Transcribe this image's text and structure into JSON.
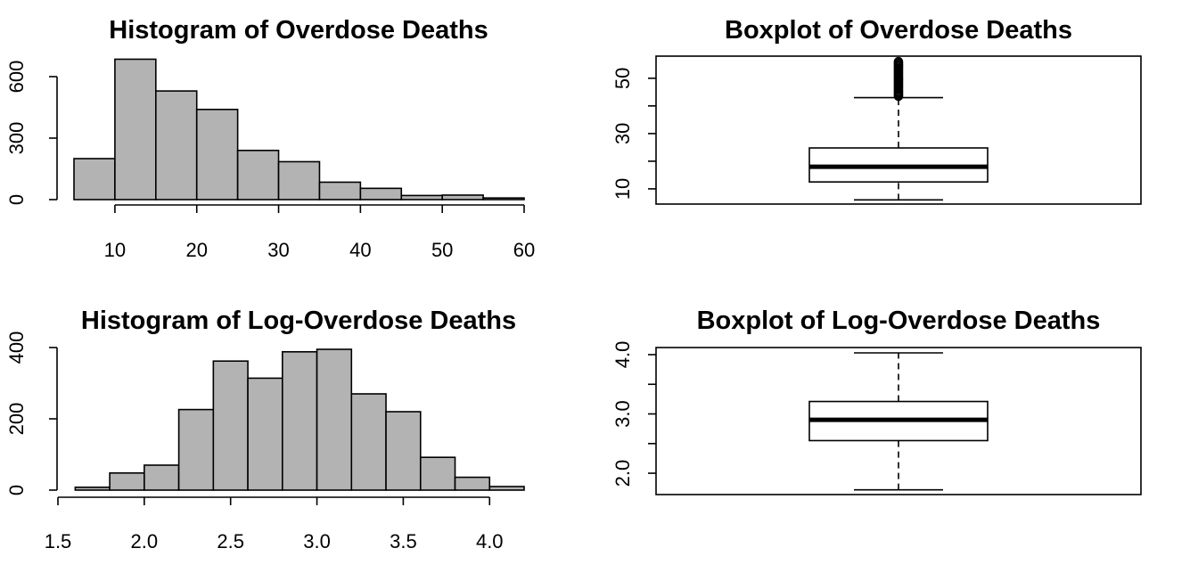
{
  "chart_data": [
    {
      "type": "histogram",
      "title": "Histogram of Overdose Deaths",
      "xlabel": "",
      "ylabel": "",
      "bins": [
        {
          "x0": 5,
          "x1": 10,
          "count": 200
        },
        {
          "x0": 10,
          "x1": 15,
          "count": 685
        },
        {
          "x0": 15,
          "x1": 20,
          "count": 530
        },
        {
          "x0": 20,
          "x1": 25,
          "count": 440
        },
        {
          "x0": 25,
          "x1": 30,
          "count": 240
        },
        {
          "x0": 30,
          "x1": 35,
          "count": 185
        },
        {
          "x0": 35,
          "x1": 40,
          "count": 85
        },
        {
          "x0": 40,
          "x1": 45,
          "count": 55
        },
        {
          "x0": 45,
          "x1": 50,
          "count": 20
        },
        {
          "x0": 50,
          "x1": 55,
          "count": 22
        },
        {
          "x0": 55,
          "x1": 60,
          "count": 8
        }
      ],
      "xlim": [
        5,
        60
      ],
      "ylim": [
        0,
        700
      ],
      "x_ticks": [
        10,
        20,
        30,
        40,
        50,
        60
      ],
      "y_ticks": [
        0,
        300,
        600
      ]
    },
    {
      "type": "boxplot",
      "title": "Boxplot of Overdose Deaths",
      "ylim": [
        4.5,
        58
      ],
      "y_ticks": [
        10,
        30,
        50
      ],
      "min": 6,
      "q1": 12.5,
      "median": 18,
      "q3": 24.8,
      "upper_whisker": 43,
      "outliers": [
        43.5,
        44,
        44.5,
        45,
        45.5,
        46,
        46.5,
        47,
        47.5,
        48,
        48.5,
        49,
        49.5,
        50,
        50.5,
        51,
        51.5,
        52,
        52.5,
        53,
        53.5,
        54,
        54.5,
        55,
        55.5,
        56
      ]
    },
    {
      "type": "histogram",
      "title": "Histogram of Log-Overdose Deaths",
      "xlabel": "",
      "ylabel": "",
      "bins": [
        {
          "x0": 1.6,
          "x1": 1.8,
          "count": 8
        },
        {
          "x0": 1.8,
          "x1": 2.0,
          "count": 48
        },
        {
          "x0": 2.0,
          "x1": 2.2,
          "count": 70
        },
        {
          "x0": 2.2,
          "x1": 2.4,
          "count": 226
        },
        {
          "x0": 2.4,
          "x1": 2.6,
          "count": 362
        },
        {
          "x0": 2.6,
          "x1": 2.8,
          "count": 314
        },
        {
          "x0": 2.8,
          "x1": 3.0,
          "count": 388
        },
        {
          "x0": 3.0,
          "x1": 3.2,
          "count": 395
        },
        {
          "x0": 3.2,
          "x1": 3.4,
          "count": 270
        },
        {
          "x0": 3.4,
          "x1": 3.6,
          "count": 220
        },
        {
          "x0": 3.6,
          "x1": 3.8,
          "count": 92
        },
        {
          "x0": 3.8,
          "x1": 4.0,
          "count": 36
        },
        {
          "x0": 4.0,
          "x1": 4.2,
          "count": 10
        }
      ],
      "xlim": [
        1.5,
        4.2
      ],
      "ylim": [
        0,
        400
      ],
      "x_ticks": [
        "1.5",
        "2.0",
        "2.5",
        "3.0",
        "3.5",
        "4.0"
      ],
      "y_ticks": [
        0,
        200,
        400
      ]
    },
    {
      "type": "boxplot",
      "title": "Boxplot of Log-Overdose Deaths",
      "ylim": [
        1.64,
        4.12
      ],
      "y_ticks": [
        "2.0",
        "3.0",
        "4.0"
      ],
      "minor_ticks": [
        2.5,
        3.5
      ],
      "min": 1.72,
      "q1": 2.55,
      "median": 2.9,
      "q3": 3.21,
      "upper_whisker": 4.03,
      "outliers": []
    }
  ]
}
